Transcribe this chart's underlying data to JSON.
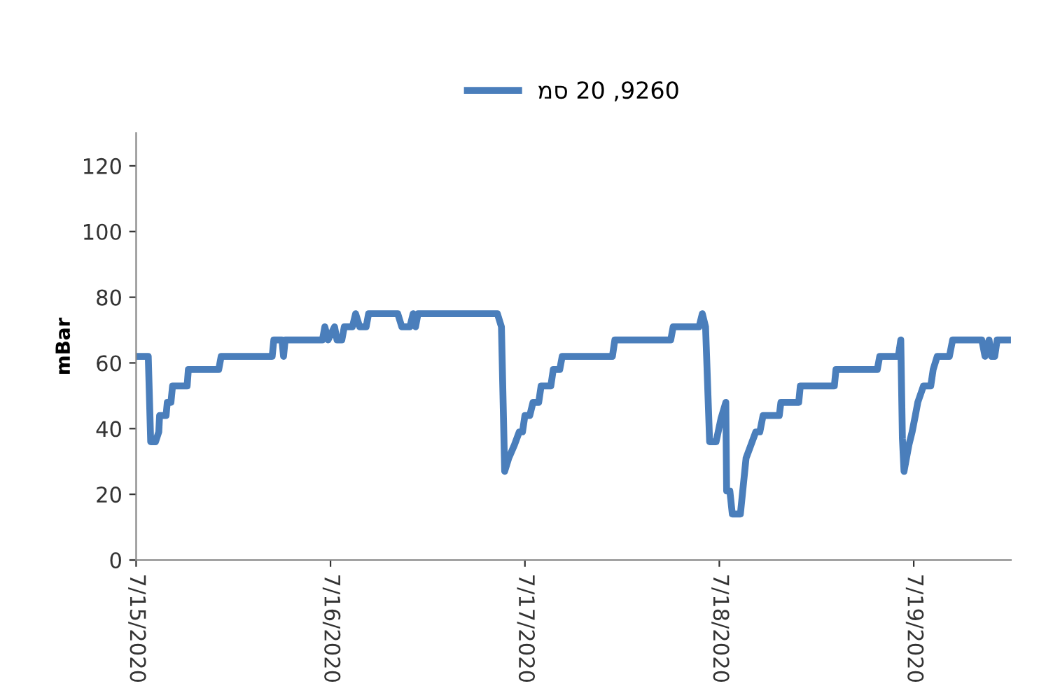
{
  "chart_data": {
    "type": "line",
    "ylabel": "mBar",
    "legend": "top",
    "grid": false,
    "marker": "none",
    "line_style": "solid",
    "ylim": [
      0,
      130
    ],
    "yticks": [
      0,
      20,
      40,
      60,
      80,
      100,
      120
    ],
    "xlim": [
      "2020-07-15T00:00",
      "2020-07-19T12:00"
    ],
    "xticks": [
      {
        "value": "2020-07-15",
        "label": "7/15/2020"
      },
      {
        "value": "2020-07-16",
        "label": "7/16/2020"
      },
      {
        "value": "2020-07-17",
        "label": "7/17/2020"
      },
      {
        "value": "2020-07-18",
        "label": "7/18/2020"
      },
      {
        "value": "2020-07-19",
        "label": "7/19/2020"
      }
    ],
    "series": [
      {
        "name": "מס 20 ,9260",
        "color": "#4a7ebb",
        "x": [
          "2020-07-15T00:00",
          "2020-07-15T01:30",
          "2020-07-15T01:48",
          "2020-07-15T02:24",
          "2020-07-15T02:48",
          "2020-07-15T02:54",
          "2020-07-15T03:42",
          "2020-07-15T03:51",
          "2020-07-15T04:18",
          "2020-07-15T04:30",
          "2020-07-15T06:18",
          "2020-07-15T06:27",
          "2020-07-15T10:12",
          "2020-07-15T10:30",
          "2020-07-15T16:48",
          "2020-07-15T17:00",
          "2020-07-15T18:00",
          "2020-07-15T18:12",
          "2020-07-15T18:24",
          "2020-07-15T23:00",
          "2020-07-15T23:18",
          "2020-07-15T23:42",
          "2020-07-16T00:30",
          "2020-07-16T00:48",
          "2020-07-16T01:24",
          "2020-07-16T01:42",
          "2020-07-16T02:42",
          "2020-07-16T03:06",
          "2020-07-16T03:36",
          "2020-07-16T04:24",
          "2020-07-16T04:42",
          "2020-07-16T08:18",
          "2020-07-16T08:48",
          "2020-07-16T09:48",
          "2020-07-16T10:12",
          "2020-07-16T10:30",
          "2020-07-16T10:48",
          "2020-07-16T20:36",
          "2020-07-16T21:06",
          "2020-07-16T21:30",
          "2020-07-16T22:00",
          "2020-07-16T22:42",
          "2020-07-16T23:18",
          "2020-07-16T23:42",
          "2020-07-17T00:00",
          "2020-07-17T00:36",
          "2020-07-17T01:00",
          "2020-07-17T01:42",
          "2020-07-17T02:00",
          "2020-07-17T03:12",
          "2020-07-17T03:30",
          "2020-07-17T04:18",
          "2020-07-17T04:36",
          "2020-07-17T10:48",
          "2020-07-17T11:06",
          "2020-07-17T18:00",
          "2020-07-17T18:18",
          "2020-07-17T21:30",
          "2020-07-17T21:54",
          "2020-07-17T22:18",
          "2020-07-17T22:48",
          "2020-07-17T23:36",
          "2020-07-18T00:12",
          "2020-07-18T00:48",
          "2020-07-18T00:54",
          "2020-07-18T01:18",
          "2020-07-18T01:36",
          "2020-07-18T02:36",
          "2020-07-18T03:18",
          "2020-07-18T03:54",
          "2020-07-18T04:30",
          "2020-07-18T05:00",
          "2020-07-18T05:24",
          "2020-07-18T07:24",
          "2020-07-18T07:36",
          "2020-07-18T09:48",
          "2020-07-18T10:00",
          "2020-07-18T14:12",
          "2020-07-18T14:24",
          "2020-07-18T19:30",
          "2020-07-18T19:48",
          "2020-07-18T22:06",
          "2020-07-18T22:24",
          "2020-07-18T22:36",
          "2020-07-18T22:48",
          "2020-07-18T23:24",
          "2020-07-18T23:48",
          "2020-07-19T00:12",
          "2020-07-19T00:30",
          "2020-07-19T01:12",
          "2020-07-19T02:06",
          "2020-07-19T02:24",
          "2020-07-19T02:54",
          "2020-07-19T04:24",
          "2020-07-19T04:48",
          "2020-07-19T08:24",
          "2020-07-19T08:48",
          "2020-07-19T09:18",
          "2020-07-19T09:36",
          "2020-07-19T10:00",
          "2020-07-19T10:18",
          "2020-07-19T12:00"
        ],
        "values": [
          62,
          62,
          36,
          36,
          39,
          44,
          44,
          48,
          48,
          53,
          53,
          58,
          58,
          62,
          62,
          67,
          67,
          62,
          67,
          67,
          71,
          67,
          71,
          67,
          67,
          71,
          71,
          75,
          71,
          71,
          75,
          75,
          71,
          71,
          75,
          71,
          75,
          75,
          71,
          27,
          31,
          35,
          39,
          39,
          44,
          44,
          48,
          48,
          53,
          53,
          58,
          58,
          62,
          62,
          67,
          67,
          71,
          71,
          75,
          71,
          36,
          36,
          43,
          48,
          21,
          21,
          14,
          14,
          31,
          35,
          39,
          39,
          44,
          44,
          48,
          48,
          53,
          53,
          58,
          58,
          62,
          62,
          67,
          37,
          27,
          35,
          39,
          44,
          48,
          53,
          53,
          58,
          62,
          62,
          67,
          67,
          62,
          67,
          62,
          62,
          67,
          67
        ]
      }
    ]
  }
}
